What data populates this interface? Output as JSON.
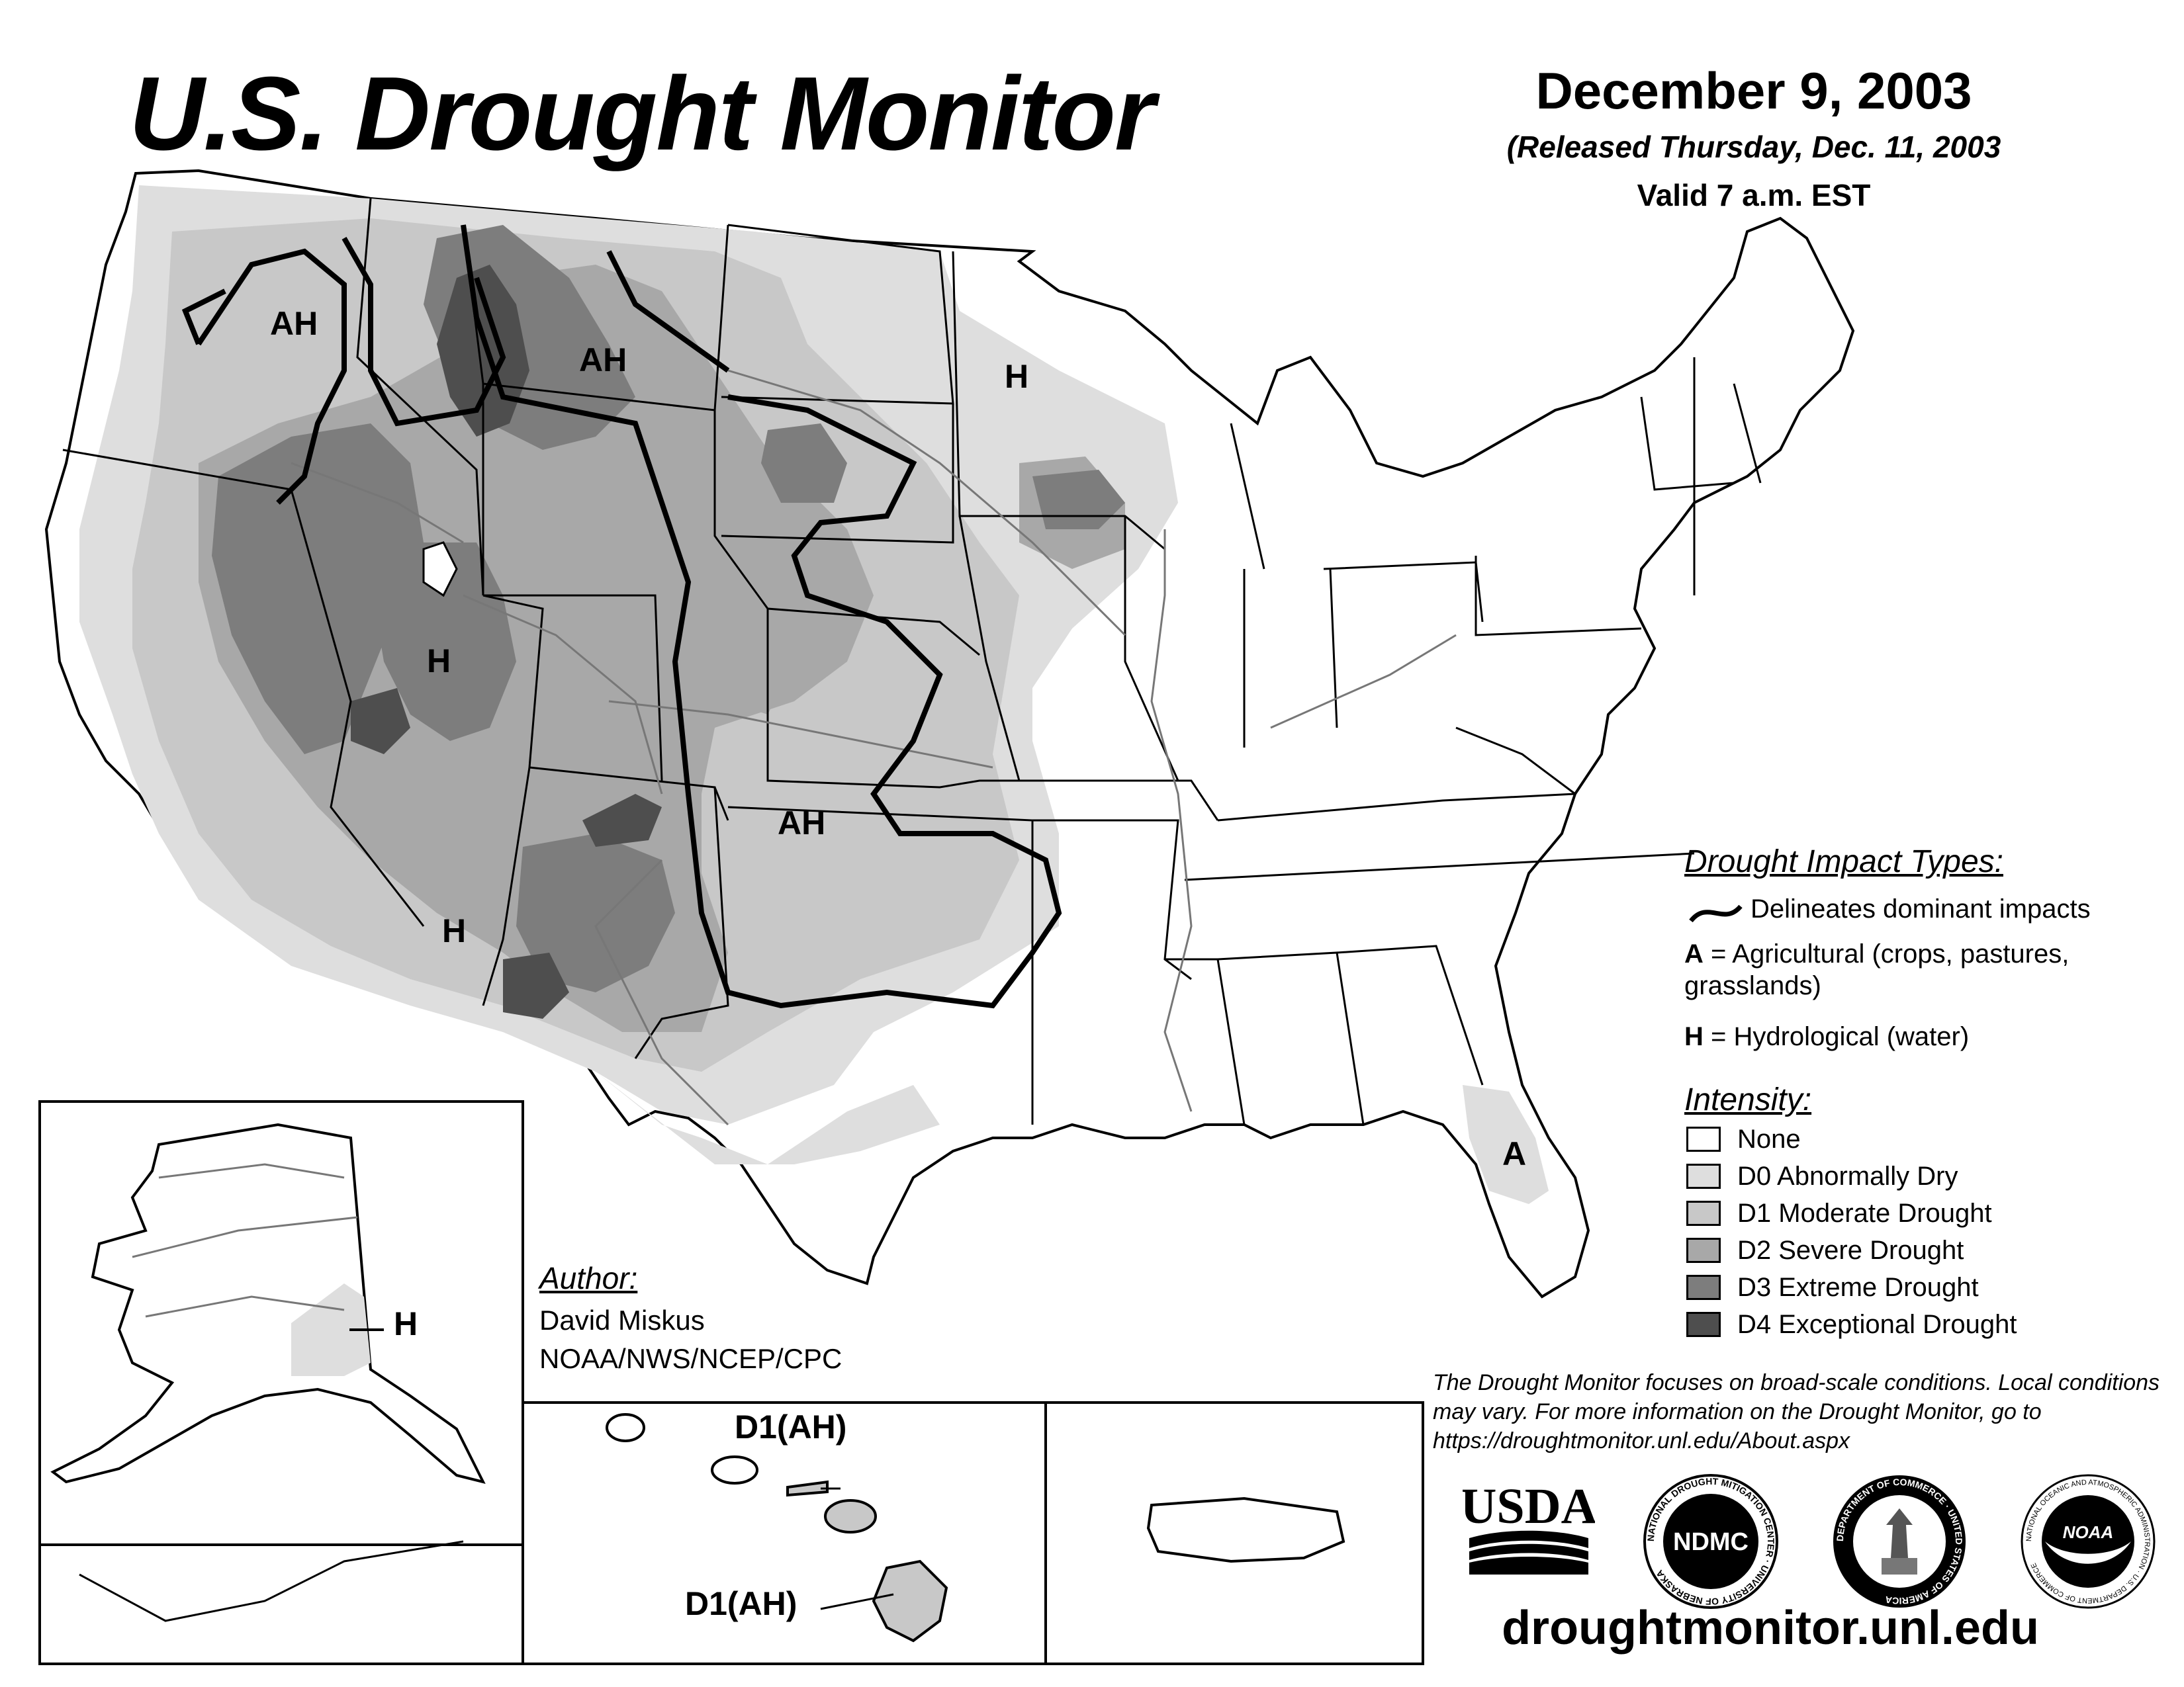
{
  "header": {
    "title": "U.S. Drought Monitor",
    "date": "December 9, 2003",
    "released": "(Released Thursday, Dec. 11, 2003",
    "valid": "Valid 7 a.m. EST"
  },
  "legend": {
    "impact_title": "Drought Impact Types:",
    "impact_line": "Delineates dominant impacts",
    "impact_a_letter": "A",
    "impact_a_text": " = Agricultural (crops, pastures,",
    "impact_a_text2": "grasslands)",
    "impact_h_letter": "H",
    "impact_h_text": " = Hydrological (water)",
    "intensity_title": "Intensity:",
    "intensity": [
      {
        "label": "None",
        "color": "#ffffff"
      },
      {
        "label": "D0 Abnormally Dry",
        "color": "#dedede"
      },
      {
        "label": "D1 Moderate Drought",
        "color": "#c8c8c8"
      },
      {
        "label": "D2 Severe Drought",
        "color": "#a8a8a8"
      },
      {
        "label": "D3 Extreme Drought",
        "color": "#7d7d7d"
      },
      {
        "label": "D4 Exceptional Drought",
        "color": "#4e4e4e"
      }
    ]
  },
  "author": {
    "heading": "Author:",
    "name": "David Miskus",
    "org": "NOAA/NWS/NCEP/CPC"
  },
  "disclaimer": "The Drought Monitor focuses on broad-scale conditions. Local conditions may vary. For more information on the Drought Monitor, go to https://droughtmonitor.unl.edu/About.aspx",
  "website": "droughtmonitor.unl.edu",
  "map_labels": {
    "ah_northwest": "AH",
    "ah_montana": "AH",
    "h_minnesota": "H",
    "h_utah": "H",
    "h_arizona": "H",
    "ah_plains": "AH",
    "a_florida": "A",
    "h_alaska": "H",
    "hawaii_1": "D1(AH)",
    "hawaii_2": "D1(AH)"
  },
  "logos": {
    "usda": "USDA",
    "ndmc": "NDMC",
    "ndmc_ring": "NATIONAL DROUGHT MITIGATION CENTER · UNIVERSITY OF NEBRASKA",
    "commerce_ring": "DEPARTMENT OF COMMERCE · UNITED STATES OF AMERICA",
    "noaa": "NOAA",
    "noaa_ring": "NATIONAL OCEANIC AND ATMOSPHERIC ADMINISTRATION · U.S. DEPARTMENT OF COMMERCE"
  }
}
